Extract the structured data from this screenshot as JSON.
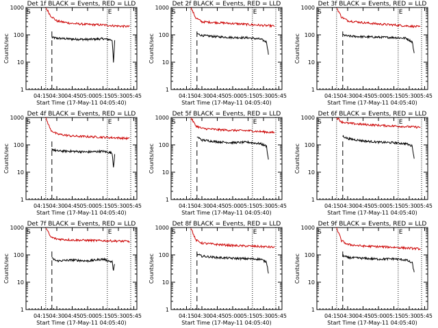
{
  "ylabel": "Counts/sec",
  "xlabel": "Start Time (17-May-11 04:05:40)",
  "x_tick_labels": [
    "04:15",
    "04:30",
    "04:45",
    "05:00",
    "05:15",
    "05:30",
    "05:45"
  ],
  "y_tick_labels": [
    "1",
    "10",
    "100",
    "1000"
  ],
  "marker_start": "S",
  "marker_end": "E",
  "colors": {
    "events": "#000000",
    "lld": "#cc0000",
    "axis": "#000000"
  },
  "chart_data": [
    {
      "type": "line",
      "title": "Det 1f BLACK = Events, RED = LLD",
      "xlim": [
        4.0,
        5.8
      ],
      "ylim": [
        1,
        1000
      ],
      "yscale": "log",
      "vlines": {
        "dotted": [
          4.32,
          5.32,
          5.7
        ],
        "dashed": 4.42
      },
      "end_marker_x": 5.32,
      "series": [
        {
          "name": "Events",
          "x": [
            4.42,
            4.5,
            4.75,
            5.0,
            5.25,
            5.4,
            5.42,
            5.44
          ],
          "y": [
            80,
            75,
            70,
            68,
            72,
            65,
            9,
            60
          ]
        },
        {
          "name": "LLD",
          "x": [
            4.32,
            4.4,
            4.5,
            4.75,
            5.0,
            5.25,
            5.5,
            5.68
          ],
          "y": [
            1000,
            500,
            320,
            260,
            240,
            230,
            210,
            200
          ]
        }
      ]
    },
    {
      "type": "line",
      "title": "Det 2f BLACK = Events, RED = LLD",
      "xlim": [
        4.0,
        5.8
      ],
      "ylim": [
        1,
        1000
      ],
      "yscale": "log",
      "vlines": {
        "dotted": [
          4.32,
          5.32,
          5.7
        ],
        "dashed": 4.42
      },
      "end_marker_x": 5.32,
      "series": [
        {
          "name": "Events",
          "x": [
            4.42,
            4.5,
            4.75,
            5.0,
            5.25,
            5.45,
            5.55,
            5.58
          ],
          "y": [
            110,
            95,
            85,
            80,
            78,
            70,
            55,
            20
          ]
        },
        {
          "name": "LLD",
          "x": [
            4.32,
            4.4,
            4.5,
            4.75,
            5.0,
            5.25,
            5.5,
            5.68
          ],
          "y": [
            1000,
            420,
            300,
            280,
            260,
            240,
            220,
            210
          ]
        }
      ]
    },
    {
      "type": "line",
      "title": "Det 3f BLACK = Events, RED = LLD",
      "xlim": [
        4.0,
        5.8
      ],
      "ylim": [
        1,
        1000
      ],
      "yscale": "log",
      "vlines": {
        "dotted": [
          4.32,
          5.32,
          5.7
        ],
        "dashed": 4.42
      },
      "end_marker_x": 5.32,
      "series": [
        {
          "name": "Events",
          "x": [
            4.42,
            4.5,
            4.75,
            5.0,
            5.25,
            5.45,
            5.55,
            5.58
          ],
          "y": [
            100,
            90,
            85,
            82,
            80,
            75,
            55,
            20
          ]
        },
        {
          "name": "LLD",
          "x": [
            4.32,
            4.4,
            4.5,
            4.75,
            5.0,
            5.25,
            5.5,
            5.68
          ],
          "y": [
            1000,
            450,
            330,
            280,
            250,
            230,
            210,
            195
          ]
        }
      ]
    },
    {
      "type": "line",
      "title": "Det 4f BLACK = Events, RED = LLD",
      "xlim": [
        4.0,
        5.8
      ],
      "ylim": [
        1,
        1000
      ],
      "yscale": "log",
      "vlines": {
        "dotted": [
          4.32,
          5.32,
          5.7
        ],
        "dashed": 4.42
      },
      "end_marker_x": 5.32,
      "series": [
        {
          "name": "Events",
          "x": [
            4.42,
            4.5,
            4.75,
            5.0,
            5.25,
            5.4,
            5.42,
            5.44
          ],
          "y": [
            70,
            60,
            58,
            55,
            58,
            50,
            15,
            45
          ]
        },
        {
          "name": "LLD",
          "x": [
            4.32,
            4.4,
            4.5,
            4.75,
            5.0,
            5.25,
            5.5,
            5.68
          ],
          "y": [
            1000,
            350,
            250,
            210,
            200,
            190,
            180,
            170
          ]
        }
      ]
    },
    {
      "type": "line",
      "title": "Det 5f BLACK = Events, RED = LLD",
      "xlim": [
        4.0,
        5.8
      ],
      "ylim": [
        1,
        1000
      ],
      "yscale": "log",
      "vlines": {
        "dotted": [
          4.32,
          5.32,
          5.7
        ],
        "dashed": 4.42
      },
      "end_marker_x": 5.32,
      "series": [
        {
          "name": "Events",
          "x": [
            4.42,
            4.5,
            4.75,
            5.0,
            5.25,
            5.45,
            5.55,
            5.58
          ],
          "y": [
            200,
            150,
            130,
            120,
            125,
            110,
            90,
            28
          ]
        },
        {
          "name": "LLD",
          "x": [
            4.32,
            4.4,
            4.5,
            4.75,
            5.0,
            5.25,
            5.5,
            5.68
          ],
          "y": [
            1000,
            500,
            400,
            360,
            340,
            330,
            300,
            280
          ]
        }
      ]
    },
    {
      "type": "line",
      "title": "Det 6f BLACK = Events, RED = LLD",
      "xlim": [
        4.0,
        5.8
      ],
      "ylim": [
        1,
        1000
      ],
      "yscale": "log",
      "vlines": {
        "dotted": [
          4.32,
          5.32,
          5.7
        ],
        "dashed": 4.42
      },
      "end_marker_x": 5.32,
      "series": [
        {
          "name": "Events",
          "x": [
            4.42,
            4.5,
            4.75,
            5.0,
            5.25,
            5.45,
            5.55,
            5.58
          ],
          "y": [
            210,
            170,
            140,
            125,
            120,
            110,
            90,
            30
          ]
        },
        {
          "name": "LLD",
          "x": [
            4.32,
            4.4,
            4.5,
            4.75,
            5.0,
            5.25,
            5.5,
            5.68
          ],
          "y": [
            1000,
            700,
            620,
            560,
            520,
            490,
            460,
            440
          ]
        }
      ]
    },
    {
      "type": "line",
      "title": "Det 7f BLACK = Events, RED = LLD",
      "xlim": [
        4.0,
        5.8
      ],
      "ylim": [
        1,
        1000
      ],
      "yscale": "log",
      "vlines": {
        "dotted": [
          4.32,
          5.32,
          5.7
        ],
        "dashed": 4.42
      },
      "end_marker_x": 5.32,
      "series": [
        {
          "name": "Events",
          "x": [
            4.42,
            4.5,
            4.75,
            5.0,
            5.25,
            5.4,
            5.42,
            5.44
          ],
          "y": [
            75,
            60,
            65,
            60,
            70,
            55,
            25,
            50
          ]
        },
        {
          "name": "LLD",
          "x": [
            4.32,
            4.4,
            4.5,
            4.75,
            5.0,
            5.25,
            5.5,
            5.68
          ],
          "y": [
            1000,
            450,
            380,
            350,
            340,
            330,
            320,
            310
          ]
        }
      ]
    },
    {
      "type": "line",
      "title": "Det 8f BLACK = Events, RED = LLD",
      "xlim": [
        4.0,
        5.8
      ],
      "ylim": [
        1,
        1000
      ],
      "yscale": "log",
      "vlines": {
        "dotted": [
          4.32,
          5.32,
          5.7
        ],
        "dashed": 4.42
      },
      "end_marker_x": 5.32,
      "series": [
        {
          "name": "Events",
          "x": [
            4.42,
            4.5,
            4.75,
            5.0,
            5.25,
            5.45,
            5.55,
            5.58
          ],
          "y": [
            105,
            90,
            80,
            75,
            72,
            70,
            55,
            22
          ]
        },
        {
          "name": "LLD",
          "x": [
            4.32,
            4.4,
            4.5,
            4.75,
            5.0,
            5.25,
            5.5,
            5.68
          ],
          "y": [
            1000,
            350,
            270,
            240,
            220,
            210,
            200,
            190
          ]
        }
      ]
    },
    {
      "type": "line",
      "title": "Det 9f BLACK = Events, RED = LLD",
      "xlim": [
        4.0,
        5.8
      ],
      "ylim": [
        1,
        1000
      ],
      "yscale": "log",
      "vlines": {
        "dotted": [
          4.32,
          5.32,
          5.7
        ],
        "dashed": 4.42
      },
      "end_marker_x": 5.32,
      "series": [
        {
          "name": "Events",
          "x": [
            4.42,
            4.5,
            4.75,
            5.0,
            5.25,
            5.45,
            5.55,
            5.58
          ],
          "y": [
            95,
            80,
            75,
            70,
            72,
            65,
            50,
            22
          ]
        },
        {
          "name": "LLD",
          "x": [
            4.32,
            4.4,
            4.5,
            4.75,
            5.0,
            5.25,
            5.5,
            5.68
          ],
          "y": [
            1000,
            330,
            240,
            210,
            200,
            190,
            175,
            165
          ]
        }
      ]
    }
  ]
}
